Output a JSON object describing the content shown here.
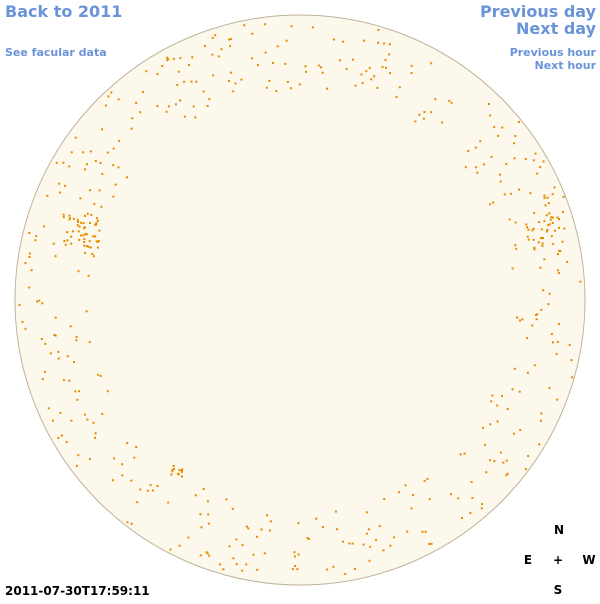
{
  "navigation": {
    "back": "Back to 2011",
    "previous_day": "Previous day",
    "next_day": "Next day",
    "facular_data": "See facular data",
    "previous_hour": "Previous hour",
    "next_hour": "Next hour"
  },
  "timestamp": "2011-07-30T17:59:11",
  "compass": {
    "north": "N",
    "east": "E",
    "center": "+",
    "west": "W",
    "south": "S"
  }
}
